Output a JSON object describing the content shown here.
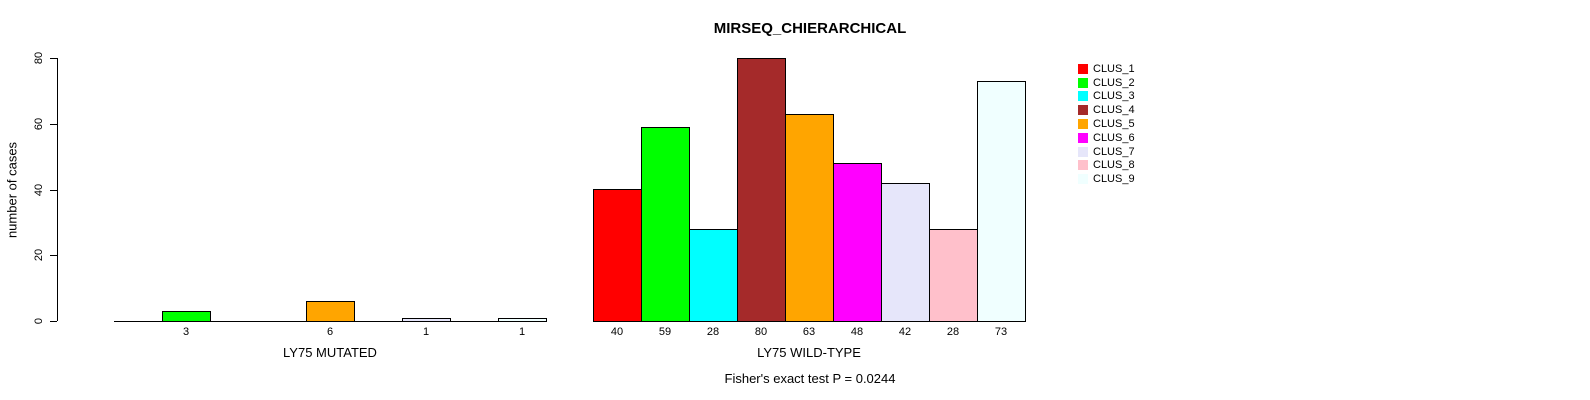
{
  "chart_data": {
    "type": "bar",
    "title": "MIRSEQ_CHIERARCHICAL",
    "ylabel": "number of cases",
    "xlabel": "",
    "ylim": [
      0,
      80
    ],
    "yticks": [
      0,
      20,
      40,
      60,
      80
    ],
    "annotation": "Fisher's exact test P = 0.0244",
    "legend_position": "right",
    "grid": false,
    "bar_border_color": "#000000",
    "series": [
      {
        "name": "CLUS_1",
        "color": "#ff0000"
      },
      {
        "name": "CLUS_2",
        "color": "#00ff00"
      },
      {
        "name": "CLUS_3",
        "color": "#00ffff"
      },
      {
        "name": "CLUS_4",
        "color": "#a52a2a"
      },
      {
        "name": "CLUS_5",
        "color": "#ffa500"
      },
      {
        "name": "CLUS_6",
        "color": "#ff00ff"
      },
      {
        "name": "CLUS_7",
        "color": "#e6e6fa"
      },
      {
        "name": "CLUS_8",
        "color": "#ffc0cb"
      },
      {
        "name": "CLUS_9",
        "color": "#f0ffff"
      }
    ],
    "groups": [
      {
        "label": "LY75 MUTATED",
        "values": [
          0,
          3,
          0,
          0,
          6,
          0,
          1,
          0,
          1
        ],
        "bar_labels": [
          "",
          "3",
          "",
          "",
          "6",
          "",
          "1",
          "",
          "1"
        ]
      },
      {
        "label": "LY75 WILD-TYPE",
        "values": [
          40,
          59,
          28,
          80,
          63,
          48,
          42,
          28,
          73
        ],
        "bar_labels": [
          "40",
          "59",
          "28",
          "80",
          "63",
          "48",
          "42",
          "28",
          "73"
        ]
      }
    ]
  }
}
